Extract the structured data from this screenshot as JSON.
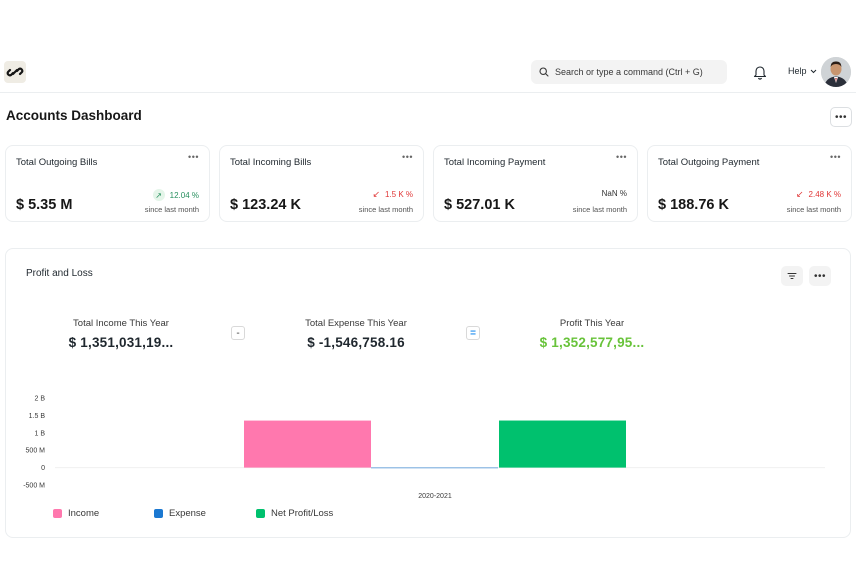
{
  "navbar": {
    "search_placeholder": "Search or type a command (Ctrl + G)",
    "help_label": "Help"
  },
  "page": {
    "title": "Accounts Dashboard"
  },
  "cards": [
    {
      "title": "Total Outgoing Bills",
      "value": "$ 5.35 M",
      "change": "12.04 %",
      "direction": "up",
      "since": "since last month"
    },
    {
      "title": "Total Incoming Bills",
      "value": "$ 123.24 K",
      "change": "1.5 K %",
      "direction": "down",
      "since": "since last month"
    },
    {
      "title": "Total Incoming Payment",
      "value": "$ 527.01 K",
      "change": "NaN %",
      "direction": "neutral",
      "since": "since last month"
    },
    {
      "title": "Total Outgoing Payment",
      "value": "$ 188.76 K",
      "change": "2.48 K %",
      "direction": "down",
      "since": "since last month"
    }
  ],
  "profit_loss": {
    "title": "Profit and Loss",
    "income_label": "Total Income This Year",
    "income_value": "$ 1,351,031,19...",
    "expense_label": "Total Expense This Year",
    "expense_value": "$ -1,546,758.16",
    "profit_label": "Profit This Year",
    "profit_value": "$ 1,352,577,95...",
    "minus_symbol": "-",
    "equals_symbol": "="
  },
  "chart_data": {
    "type": "bar",
    "categories": [
      "2020-2021"
    ],
    "series": [
      {
        "name": "Income",
        "values": [
          1351031190
        ],
        "color": "#ff78ae"
      },
      {
        "name": "Expense",
        "values": [
          -1546758.16
        ],
        "color": "#1b78d1"
      },
      {
        "name": "Net Profit/Loss",
        "values": [
          1352577950
        ],
        "color": "#00c16e"
      }
    ],
    "yticks": [
      "2 B",
      "1.5 B",
      "1 B",
      "500 M",
      "0",
      "-500 M"
    ],
    "ylim": [
      -500000000,
      2000000000
    ],
    "legend_position": "bottom-left"
  },
  "colors": {
    "up": "#278f5e",
    "down": "#e03636",
    "profit": "#68c33a"
  }
}
